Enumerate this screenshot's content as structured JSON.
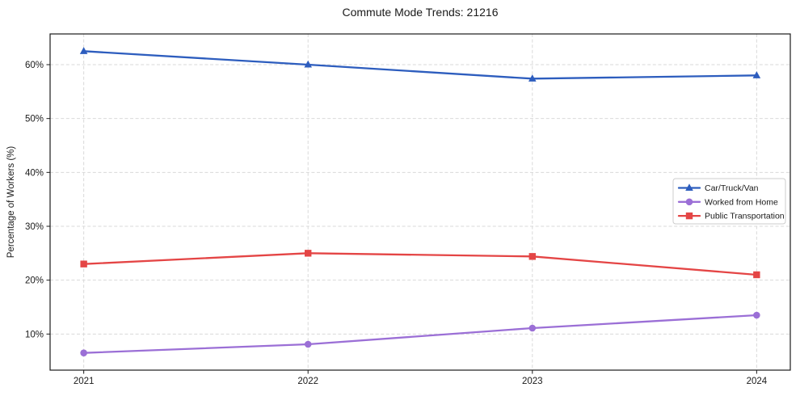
{
  "chart_data": {
    "type": "line",
    "title": "Commute Mode Trends: 21216",
    "xlabel": "",
    "ylabel": "Percentage of Workers (%)",
    "x": [
      2021,
      2022,
      2023,
      2024
    ],
    "x_tick_labels": [
      "2021",
      "2022",
      "2023",
      "2024"
    ],
    "y_ticks": [
      10,
      20,
      30,
      40,
      50,
      60
    ],
    "y_tick_labels": [
      "10%",
      "20%",
      "30%",
      "40%",
      "50%",
      "60%"
    ],
    "xlim": [
      2020.85,
      2024.15
    ],
    "ylim": [
      3.3,
      65.7
    ],
    "grid": true,
    "grid_style": "dashed",
    "legend_position": "center right",
    "series": [
      {
        "name": "Car/Truck/Van",
        "marker": "triangle",
        "color": "#2d5dbe",
        "values": [
          62.5,
          60.0,
          57.4,
          58.0
        ]
      },
      {
        "name": "Worked from Home",
        "marker": "circle",
        "color": "#9b6fd6",
        "values": [
          6.5,
          8.1,
          11.1,
          13.5
        ]
      },
      {
        "name": "Public Transportation",
        "marker": "square",
        "color": "#e44545",
        "values": [
          23.0,
          25.0,
          24.4,
          21.0
        ]
      }
    ],
    "colors": {
      "grid": "#d9d9d9",
      "spine": "#1a1a1a",
      "text": "#1a1a1a",
      "background": "#ffffff",
      "legend_border": "#cccccc"
    }
  }
}
